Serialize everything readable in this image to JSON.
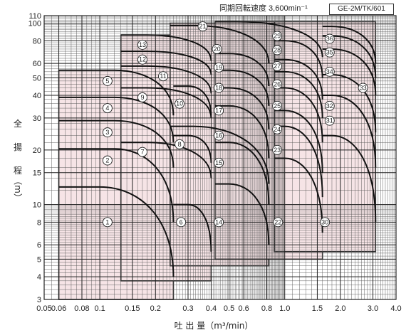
{
  "chart_data": {
    "type": "area",
    "title": "同期回転速度 3,600min⁻¹",
    "model": "GE-2M/TK/601",
    "ylabel_chars": [
      "全",
      "揚",
      "程",
      "（m）"
    ],
    "xlabel": "吐 出 量（m³/min）",
    "x_scale": "log",
    "y_scale": "log",
    "xlim": [
      0.05,
      4.0
    ],
    "ylim": [
      3,
      110
    ],
    "x_ticks": [
      0.05,
      0.06,
      0.08,
      0.1,
      0.15,
      0.2,
      0.3,
      0.4,
      0.5,
      0.6,
      0.8,
      1.0,
      1.5,
      2.0,
      3.0,
      4.0
    ],
    "x_tick_labels": [
      "0.05",
      "0.06",
      "0.08",
      "0.1",
      "0.15",
      "0.2",
      "0.3",
      "0.4",
      "0.5",
      "0.6",
      "0.8",
      "1.0",
      "1.5",
      "2.0",
      "3.0",
      "4.0"
    ],
    "y_ticks": [
      3,
      4,
      5,
      6,
      8,
      10,
      15,
      20,
      30,
      40,
      50,
      60,
      80,
      100,
      110
    ],
    "y_tick_labels": [
      "3",
      "4",
      "5",
      "6",
      "8",
      "10",
      "15",
      "20",
      "30",
      "40",
      "50",
      "60",
      "80",
      "100",
      "110"
    ],
    "grid": true,
    "fill_color": "#f6e4e6",
    "region_edges": [
      {
        "x": [
          0.06,
          0.25
        ],
        "y": [
          3.0,
          55
        ]
      },
      {
        "x": [
          0.13,
          0.4
        ],
        "y": [
          3.8,
          86
        ]
      },
      {
        "x": [
          0.24,
          0.82
        ],
        "y": [
          4.6,
          100
        ]
      },
      {
        "x": [
          0.42,
          1.6
        ],
        "y": [
          5.0,
          102
        ]
      },
      {
        "x": [
          0.88,
          3.1
        ],
        "y": [
          5.5,
          102
        ]
      }
    ],
    "curves": [
      {
        "x_start": 0.06,
        "x_knee": 0.1,
        "x_end": 0.25,
        "y_top": 12.5,
        "y_end": 4.0
      },
      {
        "x_start": 0.06,
        "x_knee": 0.12,
        "x_end": 0.25,
        "y_top": 20.3,
        "y_end": 8.0
      },
      {
        "x_start": 0.06,
        "x_knee": 0.12,
        "x_end": 0.25,
        "y_top": 29.0,
        "y_end": 16.0
      },
      {
        "x_start": 0.06,
        "x_knee": 0.12,
        "x_end": 0.25,
        "y_top": 39.0,
        "y_end": 22.0
      },
      {
        "x_start": 0.06,
        "x_knee": 0.12,
        "x_end": 0.25,
        "y_top": 55.0,
        "y_end": 31.0
      },
      {
        "x_start": 0.25,
        "x_knee": 0.3,
        "x_end": 0.4,
        "y_top": 10.0,
        "y_end": 5.5
      },
      {
        "x_start": 0.13,
        "x_knee": 0.18,
        "x_end": 0.4,
        "y_top": 22.0,
        "y_end": 14.0
      },
      {
        "x_start": 0.25,
        "x_knee": 0.3,
        "x_end": 0.4,
        "y_top": 24.0,
        "y_end": 17.0
      },
      {
        "x_start": 0.13,
        "x_knee": 0.18,
        "x_end": 0.4,
        "y_top": 44.0,
        "y_end": 30.0
      },
      {
        "x_start": 0.25,
        "x_knee": 0.3,
        "x_end": 0.4,
        "y_top": 45.0,
        "y_end": 31.0
      },
      {
        "x_start": 0.13,
        "x_knee": 0.18,
        "x_end": 0.4,
        "y_top": 58.0,
        "y_end": 41.0
      },
      {
        "x_start": 0.13,
        "x_knee": 0.18,
        "x_end": 0.4,
        "y_top": 70.0,
        "y_end": 52.0
      },
      {
        "x_start": 0.13,
        "x_knee": 0.18,
        "x_end": 0.4,
        "y_top": 86.0,
        "y_end": 62.0
      },
      {
        "x_start": 0.42,
        "x_knee": 0.5,
        "x_end": 0.82,
        "y_top": 13.0,
        "y_end": 6.0
      },
      {
        "x_start": 0.42,
        "x_knee": 0.5,
        "x_end": 0.82,
        "y_top": 22.0,
        "y_end": 10.0
      },
      {
        "x_start": 0.24,
        "x_knee": 0.32,
        "x_end": 0.82,
        "y_top": 27.0,
        "y_end": 13.0
      },
      {
        "x_start": 0.42,
        "x_knee": 0.5,
        "x_end": 0.82,
        "y_top": 35.0,
        "y_end": 18.0
      },
      {
        "x_start": 0.42,
        "x_knee": 0.5,
        "x_end": 0.82,
        "y_top": 44.0,
        "y_end": 26.0
      },
      {
        "x_start": 0.42,
        "x_knee": 0.5,
        "x_end": 0.82,
        "y_top": 55.0,
        "y_end": 35.0
      },
      {
        "x_start": 0.42,
        "x_knee": 0.5,
        "x_end": 0.82,
        "y_top": 68.0,
        "y_end": 45.0
      },
      {
        "x_start": 0.24,
        "x_knee": 0.32,
        "x_end": 0.82,
        "y_top": 97.0,
        "y_end": 60.0
      },
      {
        "x_start": 0.88,
        "x_knee": 1.0,
        "x_end": 1.6,
        "y_top": 18.0,
        "y_end": 7.0
      },
      {
        "x_start": 0.88,
        "x_knee": 1.0,
        "x_end": 1.6,
        "y_top": 27.0,
        "y_end": 11.0
      },
      {
        "x_start": 0.88,
        "x_knee": 1.0,
        "x_end": 1.6,
        "y_top": 33.0,
        "y_end": 15.0
      },
      {
        "x_start": 0.88,
        "x_knee": 1.0,
        "x_end": 1.6,
        "y_top": 44.0,
        "y_end": 22.0
      },
      {
        "x_start": 0.88,
        "x_knee": 1.0,
        "x_end": 1.6,
        "y_top": 54.0,
        "y_end": 30.0
      },
      {
        "x_start": 0.88,
        "x_knee": 1.0,
        "x_end": 1.6,
        "y_top": 63.0,
        "y_end": 38.0
      },
      {
        "x_start": 0.88,
        "x_knee": 1.0,
        "x_end": 1.6,
        "y_top": 80.0,
        "y_end": 50.0
      },
      {
        "x_start": 0.42,
        "x_knee": 0.55,
        "x_end": 1.6,
        "y_top": 102.0,
        "y_end": 65.0
      },
      {
        "x_start": 1.6,
        "x_knee": 1.8,
        "x_end": 3.1,
        "y_top": 24.0,
        "y_end": 8.0
      },
      {
        "x_start": 1.6,
        "x_knee": 1.8,
        "x_end": 3.1,
        "y_top": 40.0,
        "y_end": 16.0
      },
      {
        "x_start": 1.6,
        "x_knee": 1.8,
        "x_end": 3.1,
        "y_top": 52.0,
        "y_end": 25.0
      },
      {
        "x_start": 1.6,
        "x_knee": 1.8,
        "x_end": 3.1,
        "y_top": 72.0,
        "y_end": 40.0
      },
      {
        "x_start": 1.6,
        "x_knee": 1.8,
        "x_end": 3.1,
        "y_top": 85.0,
        "y_end": 50.0
      },
      {
        "x_start": 1.6,
        "x_knee": 1.8,
        "x_end": 3.1,
        "y_top": 96.0,
        "y_end": 60.0
      }
    ],
    "markers": [
      {
        "label": "1",
        "x": 0.11,
        "y": 8.0
      },
      {
        "label": "2",
        "x": 0.11,
        "y": 17.5
      },
      {
        "label": "3",
        "x": 0.11,
        "y": 25.0
      },
      {
        "label": "4",
        "x": 0.11,
        "y": 34.0
      },
      {
        "label": "5",
        "x": 0.11,
        "y": 48.0
      },
      {
        "label": "6",
        "x": 0.275,
        "y": 8.0
      },
      {
        "label": "7",
        "x": 0.17,
        "y": 19.5
      },
      {
        "label": "8",
        "x": 0.27,
        "y": 21.5
      },
      {
        "label": "9",
        "x": 0.17,
        "y": 39.0
      },
      {
        "label": "10",
        "x": 0.27,
        "y": 36.0
      },
      {
        "label": "11",
        "x": 0.22,
        "y": 51.0
      },
      {
        "label": "12",
        "x": 0.17,
        "y": 63.0
      },
      {
        "label": "13",
        "x": 0.17,
        "y": 76.0
      },
      {
        "label": "14",
        "x": 0.44,
        "y": 8.0
      },
      {
        "label": "15",
        "x": 0.44,
        "y": 17.0
      },
      {
        "label": "16",
        "x": 0.44,
        "y": 24.0
      },
      {
        "label": "17",
        "x": 0.44,
        "y": 33.0
      },
      {
        "label": "18",
        "x": 0.44,
        "y": 44.0
      },
      {
        "label": "19",
        "x": 0.44,
        "y": 57.0
      },
      {
        "label": "20",
        "x": 0.43,
        "y": 72.0
      },
      {
        "label": "21",
        "x": 0.36,
        "y": 96.0
      },
      {
        "label": "22",
        "x": 0.92,
        "y": 8.0
      },
      {
        "label": "23",
        "x": 0.91,
        "y": 20.0
      },
      {
        "label": "24",
        "x": 0.91,
        "y": 26.0
      },
      {
        "label": "25",
        "x": 0.91,
        "y": 35.0
      },
      {
        "label": "26",
        "x": 0.91,
        "y": 46.0
      },
      {
        "label": "27",
        "x": 0.91,
        "y": 58.0
      },
      {
        "label": "28",
        "x": 0.91,
        "y": 71.0
      },
      {
        "label": "29",
        "x": 0.91,
        "y": 85.0
      },
      {
        "label": "30",
        "x": 1.65,
        "y": 8.0
      },
      {
        "label": "31",
        "x": 1.75,
        "y": 29.0
      },
      {
        "label": "32",
        "x": 1.75,
        "y": 35.0
      },
      {
        "label": "33",
        "x": 2.65,
        "y": 44.0
      },
      {
        "label": "34",
        "x": 1.75,
        "y": 54.0
      },
      {
        "label": "35",
        "x": 1.75,
        "y": 69.0
      },
      {
        "label": "36",
        "x": 1.75,
        "y": 82.0
      }
    ]
  }
}
